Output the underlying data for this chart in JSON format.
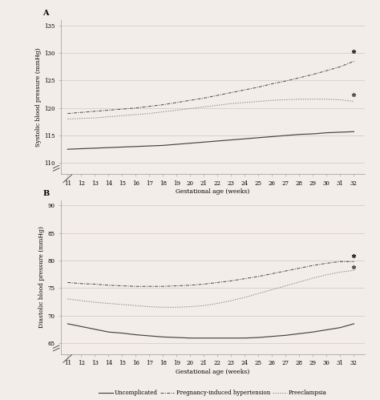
{
  "background_color": "#f2ede8",
  "x_ticks": [
    11,
    12,
    13,
    14,
    15,
    16,
    17,
    18,
    19,
    20,
    21,
    22,
    23,
    24,
    25,
    26,
    27,
    28,
    29,
    30,
    31,
    32
  ],
  "panel_A": {
    "label": "A",
    "ylabel": "Systolic blood pressure (mmHg)",
    "xlabel": "Gestational age (weeks)",
    "ylim": [
      108,
      136
    ],
    "yticks": [
      110,
      115,
      120,
      125,
      130,
      135
    ],
    "uncomplicated": [
      112.5,
      112.6,
      112.7,
      112.8,
      112.9,
      113.0,
      113.1,
      113.2,
      113.4,
      113.6,
      113.8,
      114.0,
      114.2,
      114.4,
      114.6,
      114.8,
      115.0,
      115.2,
      115.3,
      115.5,
      115.6,
      115.7
    ],
    "pih": [
      119.0,
      119.2,
      119.4,
      119.6,
      119.8,
      120.0,
      120.3,
      120.6,
      121.0,
      121.4,
      121.8,
      122.3,
      122.8,
      123.3,
      123.8,
      124.4,
      124.9,
      125.5,
      126.1,
      126.8,
      127.5,
      128.5
    ],
    "preeclampsia": [
      118.0,
      118.1,
      118.2,
      118.4,
      118.6,
      118.8,
      119.0,
      119.3,
      119.6,
      119.9,
      120.2,
      120.5,
      120.8,
      121.0,
      121.2,
      121.4,
      121.5,
      121.6,
      121.6,
      121.6,
      121.5,
      121.2
    ],
    "star_pih_x": 32,
    "star_pih_y": 130.3,
    "star_pre_x": 32,
    "star_pre_y": 122.5
  },
  "panel_B": {
    "label": "B",
    "ylabel": "Diastolic blood pressure (mmHg)",
    "xlabel": "Gestational age (weeks)",
    "ylim": [
      63,
      91
    ],
    "yticks": [
      65,
      70,
      75,
      80,
      85,
      90
    ],
    "uncomplicated": [
      68.5,
      68.0,
      67.5,
      67.0,
      66.8,
      66.5,
      66.3,
      66.1,
      66.0,
      65.9,
      65.9,
      65.9,
      65.9,
      65.9,
      66.0,
      66.2,
      66.4,
      66.7,
      67.0,
      67.4,
      67.8,
      68.5
    ],
    "pih": [
      76.0,
      75.8,
      75.7,
      75.5,
      75.4,
      75.3,
      75.3,
      75.3,
      75.4,
      75.5,
      75.7,
      76.0,
      76.3,
      76.7,
      77.1,
      77.6,
      78.1,
      78.6,
      79.1,
      79.5,
      79.8,
      79.8
    ],
    "preeclampsia": [
      73.0,
      72.7,
      72.4,
      72.2,
      72.0,
      71.8,
      71.6,
      71.5,
      71.5,
      71.6,
      71.8,
      72.2,
      72.7,
      73.3,
      74.0,
      74.7,
      75.4,
      76.1,
      76.8,
      77.4,
      77.9,
      78.2
    ],
    "star_pih_x": 32,
    "star_pih_y": 80.8,
    "star_pre_x": 32,
    "star_pre_y": 78.8
  },
  "legend": {
    "uncomplicated_label": "Uncomplicated",
    "pih_label": "Pregnancy-induced hypertension",
    "preeclampsia_label": "Preeclampsia"
  },
  "fontsize_label": 5.5,
  "fontsize_tick": 5.0,
  "fontsize_panel": 7,
  "fontsize_legend": 5.0
}
